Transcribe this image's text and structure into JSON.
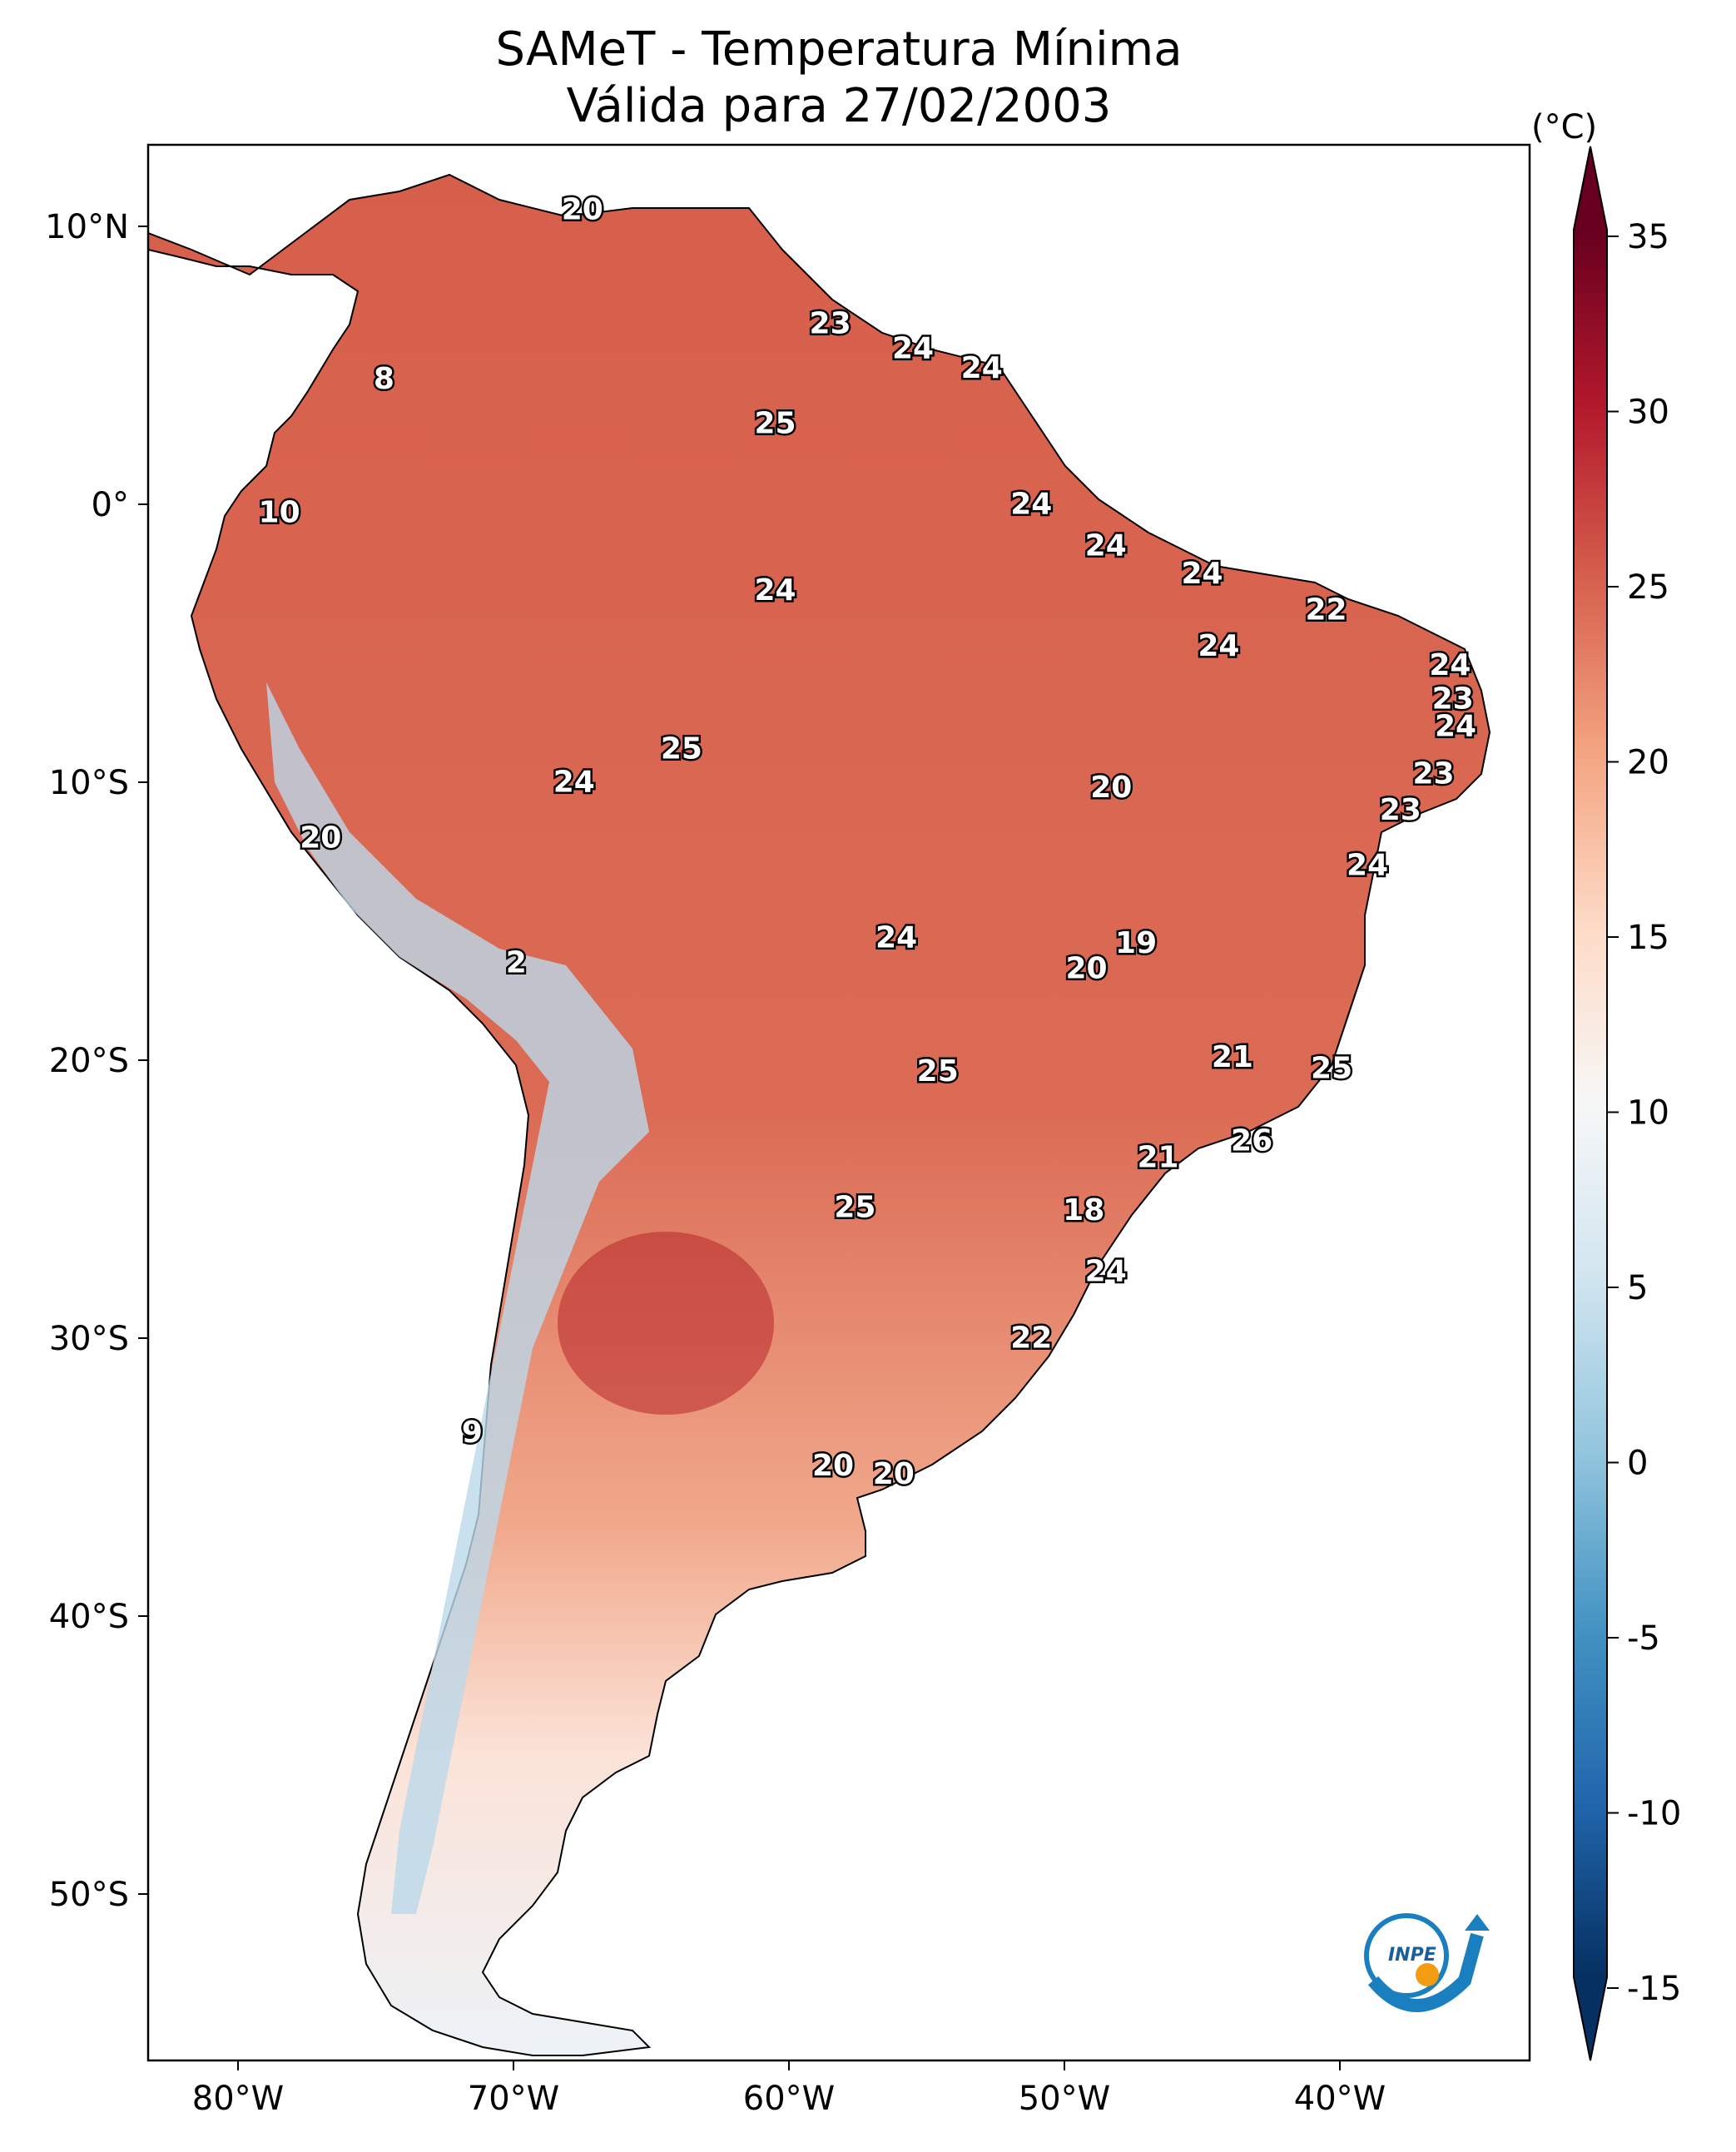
{
  "title": "SAMeT - Temperatura Mínima",
  "subtitle": "Válida para 27/02/2003",
  "colorbar": {
    "unit_label": "(°C)",
    "ticks": [
      "35",
      "30",
      "25",
      "20",
      "15",
      "10",
      "5",
      "0",
      "-5",
      "-10",
      "-15"
    ],
    "colors": [
      "#053061",
      "#2166ac",
      "#4393c3",
      "#92c5de",
      "#d1e5f0",
      "#f7f7f7",
      "#fddbc7",
      "#f4a582",
      "#d6604d",
      "#b2182b",
      "#67001f"
    ]
  },
  "axes": {
    "lon_ticks": [
      "80°W",
      "70°W",
      "60°W",
      "50°W",
      "40°W"
    ],
    "lat_ticks": [
      "10°N",
      "0°",
      "10°S",
      "20°S",
      "30°S",
      "40°S",
      "50°S"
    ]
  },
  "logo": {
    "text": "INPE",
    "icon": "inpe-logo-icon"
  },
  "station_values": [
    {
      "v": "20",
      "lon": -67.5,
      "lat": 10.6
    },
    {
      "v": "8",
      "lon": -74.7,
      "lat": 4.5
    },
    {
      "v": "23",
      "lon": -58.5,
      "lat": 6.5
    },
    {
      "v": "24",
      "lon": -55.5,
      "lat": 5.6
    },
    {
      "v": "24",
      "lon": -53,
      "lat": 4.9
    },
    {
      "v": "25",
      "lon": -60.5,
      "lat": 2.9
    },
    {
      "v": "10",
      "lon": -78.5,
      "lat": -0.3
    },
    {
      "v": "24",
      "lon": -51.2,
      "lat": 0
    },
    {
      "v": "24",
      "lon": -48.5,
      "lat": -1.5
    },
    {
      "v": "24",
      "lon": -60.5,
      "lat": -3.1
    },
    {
      "v": "24",
      "lon": -45,
      "lat": -2.5
    },
    {
      "v": "22",
      "lon": -40.5,
      "lat": -3.8
    },
    {
      "v": "24",
      "lon": -44.4,
      "lat": -5.1
    },
    {
      "v": "24",
      "lon": -36,
      "lat": -5.8
    },
    {
      "v": "23",
      "lon": -35.9,
      "lat": -7
    },
    {
      "v": "24",
      "lon": -35.8,
      "lat": -8
    },
    {
      "v": "25",
      "lon": -63.9,
      "lat": -8.8
    },
    {
      "v": "23",
      "lon": -36.6,
      "lat": -9.7
    },
    {
      "v": "20",
      "lon": -48.3,
      "lat": -10.2
    },
    {
      "v": "24",
      "lon": -67.8,
      "lat": -10
    },
    {
      "v": "23",
      "lon": -37.8,
      "lat": -11
    },
    {
      "v": "20",
      "lon": -77,
      "lat": -12
    },
    {
      "v": "24",
      "lon": -39,
      "lat": -13
    },
    {
      "v": "2",
      "lon": -69.9,
      "lat": -16.5
    },
    {
      "v": "24",
      "lon": -56.1,
      "lat": -15.6
    },
    {
      "v": "19",
      "lon": -47.4,
      "lat": -15.8
    },
    {
      "v": "20",
      "lon": -49.2,
      "lat": -16.7
    },
    {
      "v": "21",
      "lon": -43.9,
      "lat": -19.9
    },
    {
      "v": "25",
      "lon": -54.6,
      "lat": -20.4
    },
    {
      "v": "25",
      "lon": -40.3,
      "lat": -20.3
    },
    {
      "v": "26",
      "lon": -43.2,
      "lat": -22.9
    },
    {
      "v": "21",
      "lon": -46.6,
      "lat": -23.5
    },
    {
      "v": "25",
      "lon": -57.6,
      "lat": -25.3
    },
    {
      "v": "18",
      "lon": -49.3,
      "lat": -25.4
    },
    {
      "v": "24",
      "lon": -48.5,
      "lat": -27.6
    },
    {
      "v": "22",
      "lon": -51.2,
      "lat": -30
    },
    {
      "v": "9",
      "lon": -71.5,
      "lat": -33.4
    },
    {
      "v": "20",
      "lon": -58.4,
      "lat": -34.6
    },
    {
      "v": "20",
      "lon": -56.2,
      "lat": -34.9
    }
  ]
}
